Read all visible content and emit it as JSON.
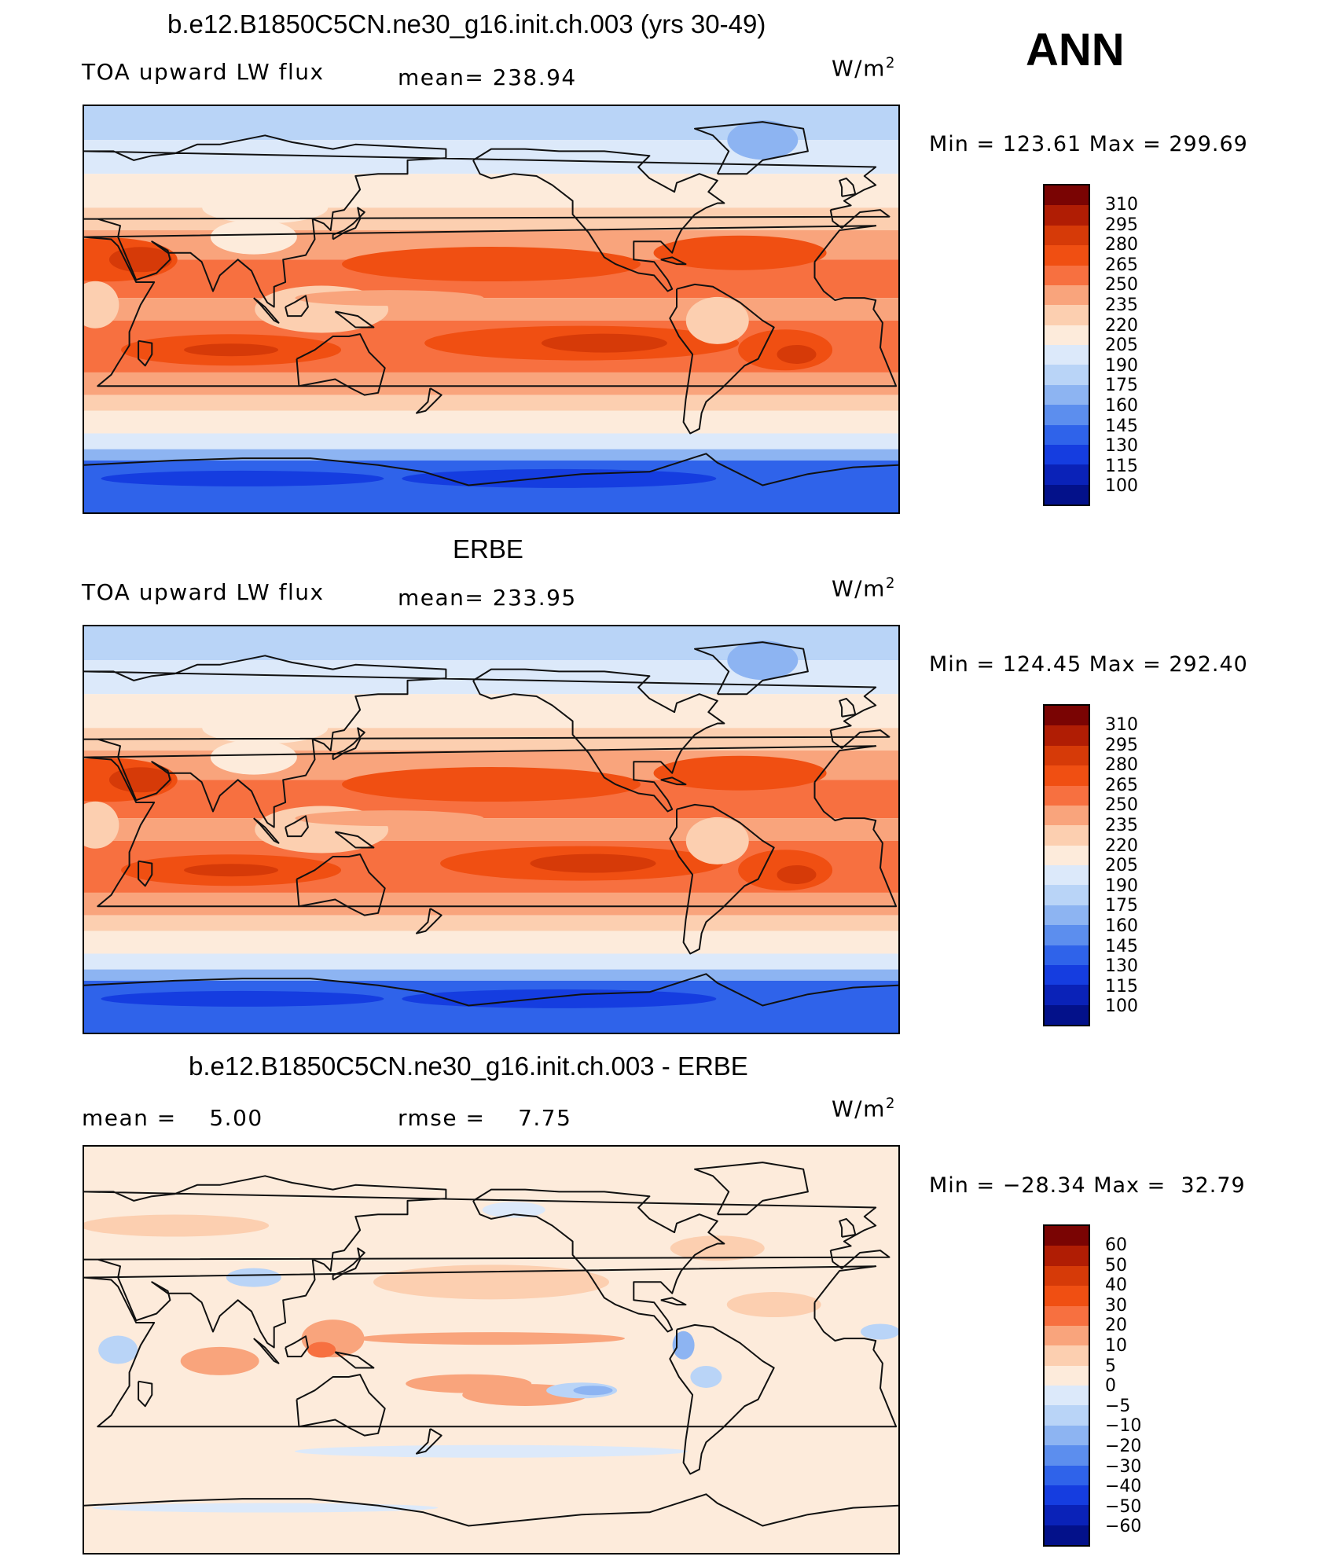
{
  "ann": "ANN",
  "panels": [
    {
      "title": "b.e12.B1850C5CN.ne30_g16.init.ch.003 (yrs 30-49)",
      "left_label": "TOA upward LW flux",
      "center_label": "mean= 238.94",
      "units_base": "W/m",
      "units_sup": "2",
      "minmax": "Min = 123.61 Max = 299.69",
      "colorbar_ticks": [
        "310",
        "295",
        "280",
        "265",
        "250",
        "235",
        "220",
        "205",
        "190",
        "175",
        "160",
        "145",
        "130",
        "115",
        "100"
      ],
      "kind": "model"
    },
    {
      "title": "ERBE",
      "left_label": "TOA upward LW flux",
      "center_label": "mean= 233.95",
      "units_base": "W/m",
      "units_sup": "2",
      "minmax": "Min = 124.45 Max = 292.40",
      "colorbar_ticks": [
        "310",
        "295",
        "280",
        "265",
        "250",
        "235",
        "220",
        "205",
        "190",
        "175",
        "160",
        "145",
        "130",
        "115",
        "100"
      ],
      "kind": "obs"
    },
    {
      "title": "b.e12.B1850C5CN.ne30_g16.init.ch.003 - ERBE",
      "left_label": "mean =    5.00",
      "center_label": "rmse =    7.75",
      "units_base": "W/m",
      "units_sup": "2",
      "minmax": "Min = −28.34 Max =  32.79",
      "colorbar_ticks": [
        "60",
        "50",
        "40",
        "30",
        "20",
        "10",
        "5",
        "0",
        "−5",
        "−10",
        "−20",
        "−30",
        "−40",
        "−50",
        "−60"
      ],
      "kind": "diff"
    }
  ],
  "colors": {
    "levels": [
      "#7a0403",
      "#b01d04",
      "#d63a08",
      "#f04f12",
      "#f77040",
      "#f9a47c",
      "#fccfb0",
      "#fdebdb",
      "#dce9fa",
      "#b9d4f7",
      "#8db4f2",
      "#5c8eee",
      "#2f63ea",
      "#153de0",
      "#0a22b8",
      "#03118a"
    ]
  }
}
